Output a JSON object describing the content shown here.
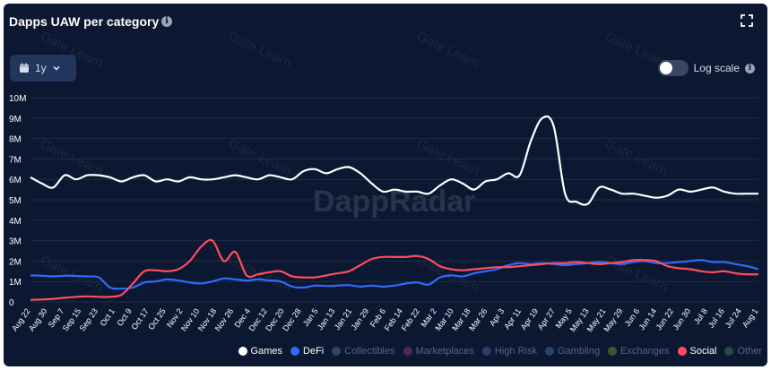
{
  "header": {
    "title": "Dapps UAW per category",
    "range_label": "1y",
    "log_scale_label": "Log scale",
    "log_scale_on": false
  },
  "watermarks": [
    "Gate Learn",
    "DappRadar"
  ],
  "chart_data": {
    "type": "line",
    "title": "Dapps UAW per category",
    "xlabel": "",
    "ylabel": "",
    "ylim": [
      0,
      10000000
    ],
    "yticks": [
      "0",
      "1M",
      "2M",
      "3M",
      "4M",
      "5M",
      "6M",
      "7M",
      "8M",
      "9M",
      "10M"
    ],
    "xticks": [
      "Aug 22",
      "Aug 30",
      "Sep 7",
      "Sep 15",
      "Sep 23",
      "Oct 1",
      "Oct 9",
      "Oct 17",
      "Oct 25",
      "Nov 2",
      "Nov 10",
      "Nov 18",
      "Nov 26",
      "Dec 4",
      "Dec 12",
      "Dec 20",
      "Dec 28",
      "Jan 5",
      "Jan 13",
      "Jan 21",
      "Jan 29",
      "Feb 6",
      "Feb 14",
      "Feb 22",
      "Mar 2",
      "Mar 10",
      "Mar 18",
      "Mar 26",
      "Apr 3",
      "Apr 11",
      "Apr 19",
      "Apr 27",
      "May 5",
      "May 13",
      "May 21",
      "May 29",
      "Jun 6",
      "Jun 14",
      "Jun 22",
      "Jun 30",
      "Jul 8",
      "Jul 16",
      "Jul 24",
      "Aug 1"
    ],
    "grid": true,
    "legend_position": "bottom-right",
    "series": [
      {
        "name": "Games",
        "color": "#ffffff",
        "visible": true,
        "values": [
          6100000,
          5800000,
          5600000,
          6200000,
          6000000,
          6200000,
          6200000,
          6100000,
          5900000,
          6100000,
          6200000,
          5900000,
          6000000,
          5900000,
          6100000,
          6000000,
          6000000,
          6100000,
          6200000,
          6100000,
          6000000,
          6200000,
          6100000,
          6000000,
          6400000,
          6500000,
          6300000,
          6500000,
          6600000,
          6300000,
          5800000,
          5400000,
          5500000,
          5400000,
          5400000,
          5300000,
          5700000,
          6000000,
          5800000,
          5500000,
          5900000,
          6000000,
          6300000,
          6200000,
          7900000,
          9000000,
          8600000,
          5300000,
          4900000,
          4800000,
          5600000,
          5500000,
          5300000,
          5300000,
          5200000,
          5100000,
          5200000,
          5500000,
          5400000,
          5500000,
          5600000,
          5400000,
          5300000,
          5300000,
          5300000
        ]
      },
      {
        "name": "DeFi",
        "color": "#2f6bff",
        "visible": true,
        "values": [
          1300000,
          1280000,
          1250000,
          1280000,
          1270000,
          1250000,
          1200000,
          700000,
          650000,
          700000,
          950000,
          1000000,
          1100000,
          1050000,
          950000,
          900000,
          1000000,
          1150000,
          1100000,
          1050000,
          1100000,
          1050000,
          1000000,
          750000,
          700000,
          800000,
          780000,
          800000,
          820000,
          750000,
          800000,
          750000,
          800000,
          900000,
          950000,
          850000,
          1200000,
          1300000,
          1250000,
          1400000,
          1500000,
          1600000,
          1800000,
          1900000,
          1850000,
          1900000,
          1850000,
          1800000,
          1850000,
          1900000,
          1950000,
          1900000,
          1850000,
          1950000,
          2000000,
          1900000,
          1900000,
          1950000,
          2000000,
          2050000,
          1950000,
          1950000,
          1850000,
          1750000,
          1600000
        ]
      },
      {
        "name": "Collectibles",
        "color": "#3c6e8c",
        "visible": false,
        "values": []
      },
      {
        "name": "Marketplaces",
        "color": "#7a3a6a",
        "visible": false,
        "values": []
      },
      {
        "name": "High Risk",
        "color": "#5a4a9a",
        "visible": false,
        "values": []
      },
      {
        "name": "Gambling",
        "color": "#3a5fa0",
        "visible": false,
        "values": []
      },
      {
        "name": "Exchanges",
        "color": "#6a7a3a",
        "visible": false,
        "values": []
      },
      {
        "name": "Social",
        "color": "#ff4d5e",
        "visible": true,
        "values": [
          100000,
          120000,
          150000,
          200000,
          250000,
          270000,
          250000,
          250000,
          350000,
          900000,
          1500000,
          1550000,
          1500000,
          1600000,
          2000000,
          2700000,
          3000000,
          2000000,
          2450000,
          1300000,
          1350000,
          1450000,
          1500000,
          1250000,
          1200000,
          1200000,
          1300000,
          1400000,
          1500000,
          1800000,
          2100000,
          2200000,
          2200000,
          2200000,
          2250000,
          2100000,
          1750000,
          1600000,
          1550000,
          1600000,
          1650000,
          1700000,
          1700000,
          1750000,
          1800000,
          1850000,
          1900000,
          1900000,
          1950000,
          1900000,
          1850000,
          1900000,
          1950000,
          2050000,
          2050000,
          2000000,
          1750000,
          1650000,
          1600000,
          1500000,
          1450000,
          1500000,
          1400000,
          1350000,
          1350000
        ]
      },
      {
        "name": "Other",
        "color": "#3a6a5a",
        "visible": false,
        "values": []
      }
    ]
  },
  "legend": [
    {
      "label": "Games",
      "color": "#ffffff",
      "visible": true
    },
    {
      "label": "DeFi",
      "color": "#2f6bff",
      "visible": true
    },
    {
      "label": "Collectibles",
      "color": "#3c6e8c",
      "visible": false
    },
    {
      "label": "Marketplaces",
      "color": "#7a3a6a",
      "visible": false
    },
    {
      "label": "High Risk",
      "color": "#5a4a9a",
      "visible": false
    },
    {
      "label": "Gambling",
      "color": "#3a5fa0",
      "visible": false
    },
    {
      "label": "Exchanges",
      "color": "#6a7a3a",
      "visible": false
    },
    {
      "label": "Social",
      "color": "#ff4d5e",
      "visible": true
    },
    {
      "label": "Other",
      "color": "#3a6a5a",
      "visible": false
    }
  ]
}
